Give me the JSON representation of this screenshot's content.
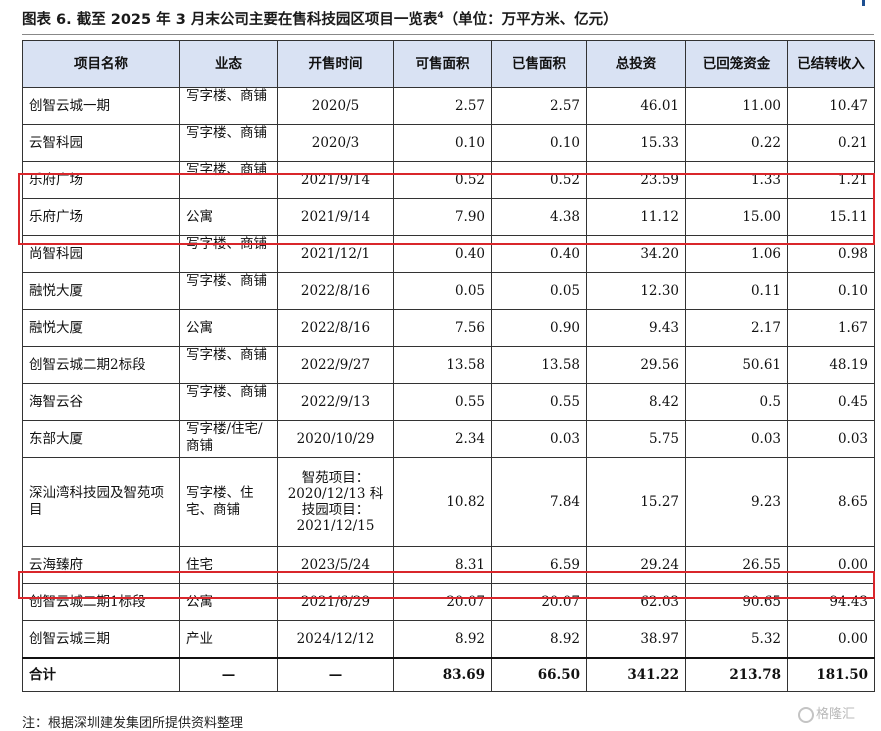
{
  "caption": {
    "text": "图表 6. 截至 2025 年 3 月末公司主要在售科技园区项目一览表",
    "sup": "4",
    "unit": "（单位：万平方米、亿元）"
  },
  "table": {
    "headers": [
      "项目名称",
      "业态",
      "开售时间",
      "可售面积",
      "已售面积",
      "总投资",
      "已回笼资金",
      "已结转收入"
    ],
    "rows": [
      {
        "name": "创智云城一期",
        "biz": "写字楼、商铺",
        "date": "2020/5",
        "sellable": "2.57",
        "sold": "2.57",
        "invest": "46.01",
        "recovered": "11.00",
        "revenue": "10.47"
      },
      {
        "name": "云智科园",
        "biz": "写字楼、商铺",
        "date": "2020/3",
        "sellable": "0.10",
        "sold": "0.10",
        "invest": "15.33",
        "recovered": "0.22",
        "revenue": "0.21"
      },
      {
        "name": "乐府广场",
        "biz": "写字楼、商铺",
        "date": "2021/9/14",
        "sellable": "0.52",
        "sold": "0.52",
        "invest": "23.59",
        "recovered": "1.33",
        "revenue": "1.21"
      },
      {
        "name": "乐府广场",
        "biz": "公寓",
        "date": "2021/9/14",
        "sellable": "7.90",
        "sold": "4.38",
        "invest": "11.12",
        "recovered": "15.00",
        "revenue": "15.11"
      },
      {
        "name": "尚智科园",
        "biz": "写字楼、商铺",
        "date": "2021/12/1",
        "sellable": "0.40",
        "sold": "0.40",
        "invest": "34.20",
        "recovered": "1.06",
        "revenue": "0.98"
      },
      {
        "name": "融悦大厦",
        "biz": "写字楼、商铺",
        "date": "2022/8/16",
        "sellable": "0.05",
        "sold": "0.05",
        "invest": "12.30",
        "recovered": "0.11",
        "revenue": "0.10"
      },
      {
        "name": "融悦大厦",
        "biz": "公寓",
        "date": "2022/8/16",
        "sellable": "7.56",
        "sold": "0.90",
        "invest": "9.43",
        "recovered": "2.17",
        "revenue": "1.67"
      },
      {
        "name": "创智云城二期2标段",
        "biz": "写字楼、商铺",
        "date": "2022/9/27",
        "sellable": "13.58",
        "sold": "13.58",
        "invest": "29.56",
        "recovered": "50.61",
        "revenue": "48.19"
      },
      {
        "name": "海智云谷",
        "biz": "写字楼、商铺",
        "date": "2022/9/13",
        "sellable": "0.55",
        "sold": "0.55",
        "invest": "8.42",
        "recovered": "0.5",
        "revenue": "0.45"
      },
      {
        "name": "东部大厦",
        "biz": "写字楼/住宅/商铺",
        "date": "2020/10/29",
        "sellable": "2.34",
        "sold": "0.03",
        "invest": "5.75",
        "recovered": "0.03",
        "revenue": "0.03"
      },
      {
        "name": "深汕湾科技园及智苑项目",
        "biz": "写字楼、住宅、商铺",
        "date": "智苑项目：2020/12/13 科技园项目：2021/12/15",
        "sellable": "10.82",
        "sold": "7.84",
        "invest": "15.27",
        "recovered": "9.23",
        "revenue": "8.65"
      },
      {
        "name": "云海臻府",
        "biz": "住宅",
        "date": "2023/5/24",
        "sellable": "8.31",
        "sold": "6.59",
        "invest": "29.24",
        "recovered": "26.55",
        "revenue": "0.00"
      },
      {
        "name": "创智云城二期1标段",
        "biz": "公寓",
        "date": "2021/6/29",
        "sellable": "20.07",
        "sold": "20.07",
        "invest": "62.03",
        "recovered": "90.65",
        "revenue": "94.43"
      },
      {
        "name": "创智云城三期",
        "biz": "产业",
        "date": "2024/12/12",
        "sellable": "8.92",
        "sold": "8.92",
        "invest": "38.97",
        "recovered": "5.32",
        "revenue": "0.00"
      }
    ],
    "total": {
      "name": "合计",
      "biz": "—",
      "date": "—",
      "sellable": "83.69",
      "sold": "66.50",
      "invest": "341.22",
      "recovered": "213.78",
      "revenue": "181.50"
    }
  },
  "note": "注：根据深圳建发集团所提供资料整理",
  "watermark": "格隆汇",
  "colors": {
    "header_bg": "#d9e2f3",
    "highlight": "#d9262b",
    "border": "#333333"
  }
}
